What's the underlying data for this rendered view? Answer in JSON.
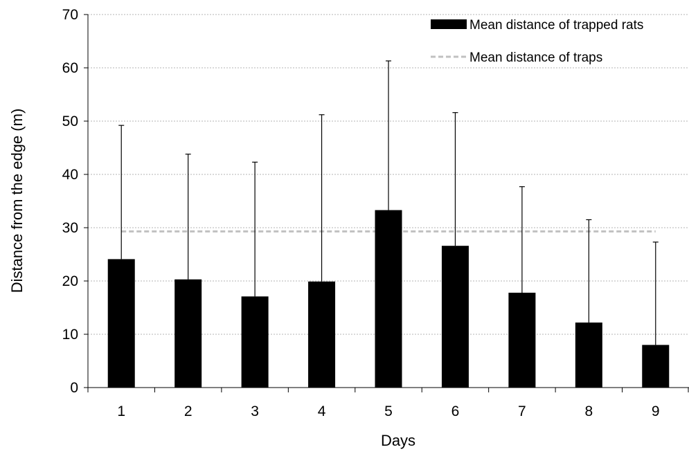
{
  "chart_data": {
    "type": "bar",
    "categories": [
      "1",
      "2",
      "3",
      "4",
      "5",
      "6",
      "7",
      "8",
      "9"
    ],
    "series": [
      {
        "name": "Mean distance of trapped rats",
        "type": "bar",
        "color": "#000000",
        "values": [
          24.1,
          20.3,
          17.1,
          19.9,
          33.3,
          26.6,
          17.8,
          12.2,
          8.0
        ],
        "error_upper": [
          49.2,
          43.8,
          42.3,
          51.2,
          61.3,
          51.6,
          37.7,
          31.5,
          27.3
        ]
      },
      {
        "name": "Mean distance of traps",
        "type": "line",
        "style": "dashed",
        "color": "#c0c0c0",
        "value": 29.3
      }
    ],
    "xlabel": "Days",
    "ylabel": "Distance from the edge  (m)",
    "ylim": [
      0,
      70
    ],
    "yticks": [
      0,
      10,
      20,
      30,
      40,
      50,
      60,
      70
    ],
    "grid": "horizontal",
    "legend_position": "top-right"
  }
}
